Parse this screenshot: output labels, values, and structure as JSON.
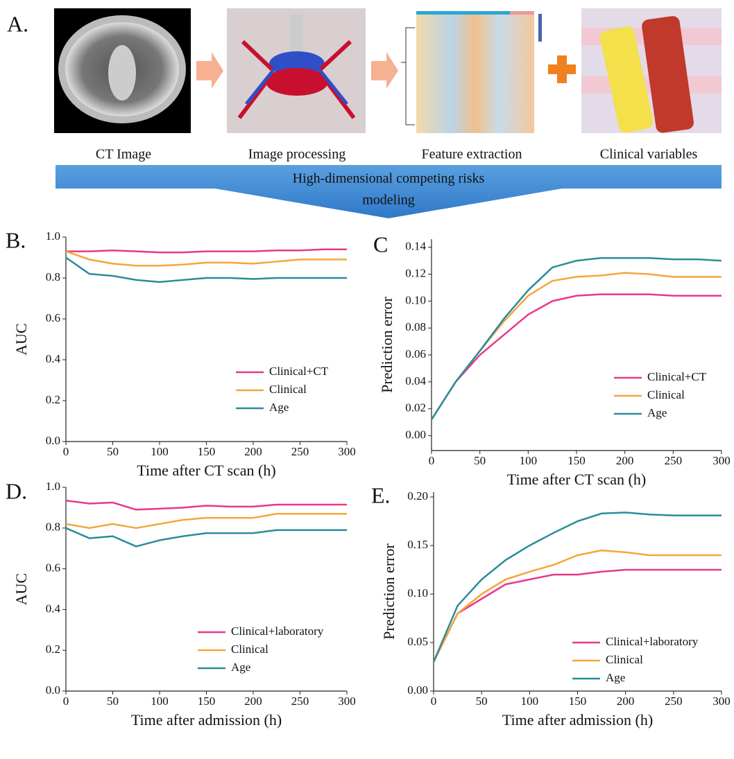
{
  "panel_a": {
    "label": "A.",
    "captions": [
      "CT Image",
      "Image processing",
      "Feature extraction",
      "Clinical variables"
    ],
    "banner_lines": [
      "High-dimensional competing risks",
      "modeling"
    ]
  },
  "chart_data": [
    {
      "type": "line",
      "panel_label": "B.",
      "xlabel": "Time after CT scan (h)",
      "ylabel": "AUC",
      "x": [
        0,
        25,
        50,
        75,
        100,
        125,
        150,
        175,
        200,
        225,
        250,
        275,
        300
      ],
      "xlim": [
        0,
        300
      ],
      "xticks": [
        0,
        50,
        100,
        150,
        200,
        250,
        300
      ],
      "ylim": [
        0,
        1
      ],
      "yticks": [
        {
          "value": 0,
          "label": "0.0"
        },
        0.2,
        0.4,
        0.6,
        0.8,
        {
          "value": 1,
          "label": "1.0"
        }
      ],
      "legend": "lower right",
      "series": [
        {
          "name": "Clinical+CT",
          "color": "#e8388a",
          "values": [
            0.93,
            0.93,
            0.935,
            0.93,
            0.925,
            0.925,
            0.93,
            0.93,
            0.93,
            0.935,
            0.935,
            0.94,
            0.94
          ]
        },
        {
          "name": "Clinical",
          "color": "#f5a53a",
          "values": [
            0.93,
            0.89,
            0.87,
            0.86,
            0.86,
            0.865,
            0.875,
            0.875,
            0.87,
            0.88,
            0.89,
            0.89,
            0.89
          ]
        },
        {
          "name": "Age",
          "color": "#2a8c9a",
          "values": [
            0.9,
            0.82,
            0.81,
            0.79,
            0.78,
            0.79,
            0.8,
            0.8,
            0.795,
            0.8,
            0.8,
            0.8,
            0.8
          ]
        }
      ]
    },
    {
      "type": "line",
      "panel_label": "C",
      "xlabel": "Time after CT scan (h)",
      "ylabel": "Prediction error",
      "x": [
        0,
        25,
        50,
        75,
        100,
        125,
        150,
        175,
        200,
        225,
        250,
        275,
        300
      ],
      "xlim": [
        0,
        300
      ],
      "xticks": [
        0,
        50,
        100,
        150,
        200,
        250,
        300
      ],
      "ylim": [
        -0.011,
        0.146
      ],
      "yticks": [
        {
          "value": 0,
          "label": "0.00"
        },
        0.02,
        0.04,
        0.06,
        0.08,
        {
          "value": 0.1,
          "label": "0.10"
        },
        0.12,
        0.14
      ],
      "legend": "lower right",
      "series": [
        {
          "name": "Clinical+CT",
          "color": "#e8388a",
          "values": [
            0.012,
            0.04,
            0.06,
            0.075,
            0.09,
            0.1,
            0.104,
            0.105,
            0.105,
            0.105,
            0.104,
            0.104,
            0.104
          ]
        },
        {
          "name": "Clinical",
          "color": "#f5a53a",
          "values": [
            0.012,
            0.04,
            0.063,
            0.085,
            0.104,
            0.115,
            0.118,
            0.119,
            0.121,
            0.12,
            0.118,
            0.118,
            0.118
          ]
        },
        {
          "name": "Age",
          "color": "#2a8c9a",
          "values": [
            0.012,
            0.04,
            0.063,
            0.087,
            0.108,
            0.125,
            0.13,
            0.132,
            0.132,
            0.132,
            0.131,
            0.131,
            0.13
          ]
        }
      ]
    },
    {
      "type": "line",
      "panel_label": "D.",
      "xlabel": "Time after admission (h)",
      "ylabel": "AUC",
      "x": [
        0,
        25,
        50,
        75,
        100,
        125,
        150,
        175,
        200,
        225,
        250,
        275,
        300
      ],
      "xlim": [
        0,
        300
      ],
      "xticks": [
        0,
        50,
        100,
        150,
        200,
        250,
        300
      ],
      "ylim": [
        0,
        1
      ],
      "yticks": [
        {
          "value": 0,
          "label": "0.0"
        },
        0.2,
        0.4,
        0.6,
        0.8,
        {
          "value": 1,
          "label": "1.0"
        }
      ],
      "legend": "lower right",
      "series": [
        {
          "name": "Clinical+laboratory",
          "color": "#e8388a",
          "values": [
            0.935,
            0.92,
            0.925,
            0.89,
            0.895,
            0.9,
            0.91,
            0.905,
            0.905,
            0.915,
            0.915,
            0.915,
            0.915
          ]
        },
        {
          "name": "Clinical",
          "color": "#f5a53a",
          "values": [
            0.82,
            0.8,
            0.82,
            0.8,
            0.82,
            0.84,
            0.85,
            0.85,
            0.85,
            0.87,
            0.87,
            0.87,
            0.87
          ]
        },
        {
          "name": "Age",
          "color": "#2a8c9a",
          "values": [
            0.8,
            0.75,
            0.76,
            0.71,
            0.74,
            0.76,
            0.775,
            0.775,
            0.775,
            0.79,
            0.79,
            0.79,
            0.79
          ]
        }
      ]
    },
    {
      "type": "line",
      "panel_label": "E.",
      "xlabel": "Time after admission (h)",
      "ylabel": "Prediction error",
      "x": [
        0,
        25,
        50,
        75,
        100,
        125,
        150,
        175,
        200,
        225,
        250,
        275,
        300
      ],
      "xlim": [
        0,
        300
      ],
      "xticks": [
        0,
        50,
        100,
        150,
        200,
        250,
        300
      ],
      "ylim": [
        0,
        0.205
      ],
      "yticks": [
        {
          "value": 0,
          "label": "0.00"
        },
        0.05,
        {
          "value": 0.1,
          "label": "0.10"
        },
        0.15,
        {
          "value": 0.2,
          "label": "0.20"
        }
      ],
      "legend": "lower right",
      "series": [
        {
          "name": "Clinical+laboratory",
          "color": "#e8388a",
          "values": [
            0.03,
            0.08,
            0.095,
            0.11,
            0.115,
            0.12,
            0.12,
            0.123,
            0.125,
            0.125,
            0.125,
            0.125,
            0.125
          ]
        },
        {
          "name": "Clinical",
          "color": "#f5a53a",
          "values": [
            0.03,
            0.08,
            0.1,
            0.115,
            0.123,
            0.13,
            0.14,
            0.145,
            0.143,
            0.14,
            0.14,
            0.14,
            0.14
          ]
        },
        {
          "name": "Age",
          "color": "#2a8c9a",
          "values": [
            0.03,
            0.088,
            0.115,
            0.135,
            0.15,
            0.163,
            0.175,
            0.183,
            0.184,
            0.182,
            0.181,
            0.181,
            0.181
          ]
        }
      ]
    }
  ]
}
